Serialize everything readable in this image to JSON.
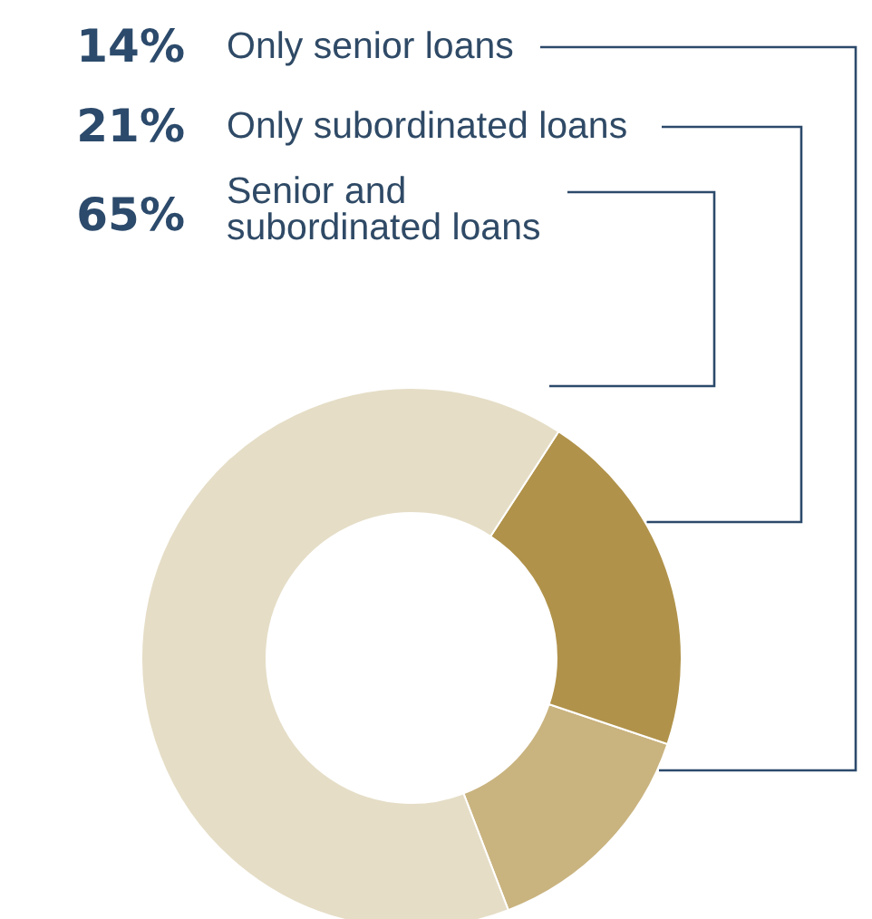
{
  "chart_data": {
    "type": "donut",
    "categories": [
      "Only senior loans",
      "Only subordinated loans",
      "Senior and subordinated loans"
    ],
    "values": [
      14,
      21,
      65
    ],
    "colors": [
      "#c9b37f",
      "#b0924a",
      "#e5ddc6"
    ],
    "value_labels": [
      "14%",
      "21%",
      "65%"
    ]
  }
}
